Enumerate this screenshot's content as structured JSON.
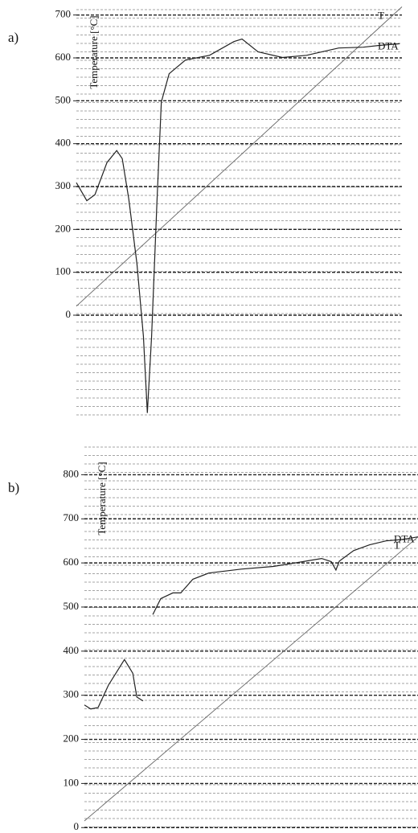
{
  "chart_data": [
    {
      "type": "line",
      "label": "a)",
      "ylabel": "Temperature [°C]",
      "xlim": [
        0,
        100
      ],
      "ylim": [
        -240,
        720
      ],
      "yticks": [
        0,
        100,
        200,
        300,
        400,
        500,
        600,
        700
      ],
      "grid": true,
      "minor_grid": true,
      "series": [
        {
          "name": "T",
          "color": "#666666",
          "x": [
            0,
            100
          ],
          "values": [
            21,
            719
          ]
        },
        {
          "name": "DTA",
          "color": "#222222",
          "x": [
            0,
            3.2,
            5.7,
            9.4,
            12.4,
            14.1,
            16.1,
            18.6,
            20.6,
            21.8,
            23.1,
            24.8,
            26.1,
            28.5,
            33.5,
            40.9,
            48.4,
            50.9,
            55.8,
            63.3,
            70.7,
            80.6,
            88.1,
            93,
            99.3
          ],
          "values": [
            309,
            267,
            281,
            356,
            384,
            365,
            271,
            121,
            -49,
            -228,
            -49,
            271,
            497,
            563,
            595,
            606,
            638,
            644,
            614,
            601,
            606,
            623,
            625,
            629,
            633
          ]
        }
      ]
    },
    {
      "type": "line",
      "label": "b)",
      "ylabel": "Temperature [°C]",
      "xlim": [
        0,
        100
      ],
      "ylim": [
        -5,
        870
      ],
      "yticks": [
        0,
        100,
        200,
        300,
        400,
        500,
        600,
        700,
        800
      ],
      "grid": true,
      "minor_grid": true,
      "series": [
        {
          "name": "T",
          "color": "#666666",
          "x": [
            0,
            100
          ],
          "values": [
            15,
            659
          ]
        },
        {
          "name": "DTA",
          "color": "#222222",
          "x": [
            0,
            1.9,
            4.1,
            7.2,
            12,
            14.5,
            15.7,
            17.6,
            null,
            20.5,
            22.9,
            26.5,
            28.9,
            32.5,
            37.3,
            47,
            56.6,
            63.9,
            71.1,
            74,
            75.4,
            76.4,
            80.7,
            85.5,
            90.4,
            95.2,
            100
          ],
          "values": [
            278,
            269,
            272,
            323,
            381,
            350,
            296,
            287,
            null,
            483,
            519,
            532,
            532,
            563,
            577,
            586,
            592,
            601,
            610,
            603,
            584,
            604,
            628,
            641,
            650,
            653,
            659
          ]
        }
      ]
    }
  ]
}
